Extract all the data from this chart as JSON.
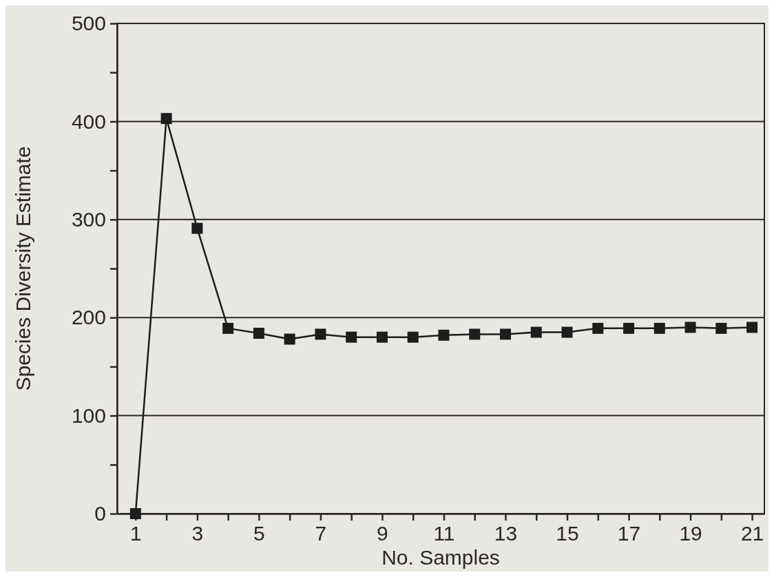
{
  "chart_data": {
    "type": "line",
    "xlabel": "No. Samples",
    "ylabel": "Species Diversity Estimate",
    "x": [
      1,
      2,
      3,
      4,
      5,
      6,
      7,
      8,
      9,
      10,
      11,
      12,
      13,
      14,
      15,
      16,
      17,
      18,
      19,
      20,
      21
    ],
    "series": [
      {
        "color": "#1e1c1c",
        "values": [
          0,
          403,
          291,
          189,
          184,
          178,
          183,
          180,
          180,
          180,
          182,
          183,
          183,
          185,
          185,
          189,
          189,
          189,
          190,
          189,
          190
        ]
      }
    ],
    "xlim": [
      0.4,
      21.4
    ],
    "xticks": [
      1,
      {
        "value": 2,
        "label": null
      },
      3,
      {
        "value": 4,
        "label": null
      },
      5,
      {
        "value": 6,
        "label": null
      },
      7,
      {
        "value": 8,
        "label": null
      },
      9,
      {
        "value": 10,
        "label": null
      },
      11,
      {
        "value": 12,
        "label": null
      },
      13,
      {
        "value": 14,
        "label": null
      },
      15,
      {
        "value": 16,
        "label": null
      },
      17,
      {
        "value": 18,
        "label": null
      },
      19,
      {
        "value": 20,
        "label": null
      },
      21
    ],
    "ylim": [
      0,
      500
    ],
    "yticks": [
      0,
      {
        "value": 50,
        "label": null
      },
      100,
      {
        "value": 150,
        "label": null
      },
      200,
      {
        "value": 250,
        "label": null
      },
      300,
      {
        "value": 350,
        "label": null
      },
      400,
      {
        "value": 450,
        "label": null
      },
      500
    ],
    "grid": "y",
    "marker": "square",
    "line_style": "solid"
  }
}
